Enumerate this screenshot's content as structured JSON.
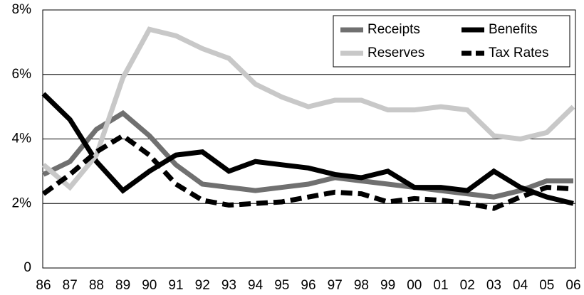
{
  "chart_data": {
    "type": "line",
    "categories": [
      "86",
      "87",
      "88",
      "89",
      "90",
      "91",
      "92",
      "93",
      "94",
      "95",
      "96",
      "97",
      "98",
      "99",
      "00",
      "01",
      "02",
      "03",
      "04",
      "05",
      "06"
    ],
    "series": [
      {
        "name": "Receipts",
        "color": "#707070",
        "line_style": "solid",
        "values": [
          2.9,
          3.3,
          4.3,
          4.8,
          4.1,
          3.2,
          2.6,
          2.5,
          2.4,
          2.5,
          2.6,
          2.8,
          2.7,
          2.6,
          2.5,
          2.4,
          2.3,
          2.2,
          2.4,
          2.7,
          2.7
        ]
      },
      {
        "name": "Benefits",
        "color": "#000000",
        "line_style": "solid",
        "values": [
          5.4,
          4.6,
          3.3,
          2.4,
          3.0,
          3.5,
          3.6,
          3.0,
          3.3,
          3.2,
          3.1,
          2.9,
          2.8,
          3.0,
          2.5,
          2.5,
          2.4,
          3.0,
          2.5,
          2.2,
          2.0
        ]
      },
      {
        "name": "Reserves",
        "color": "#c8c8c8",
        "line_style": "solid",
        "values": [
          3.2,
          2.5,
          3.5,
          5.9,
          7.4,
          7.2,
          6.8,
          6.5,
          5.7,
          5.3,
          5.0,
          5.2,
          5.2,
          4.9,
          4.9,
          5.0,
          4.9,
          4.1,
          4.0,
          4.2,
          5.0
        ]
      },
      {
        "name": "Tax Rates",
        "color": "#000000",
        "line_style": "dashed",
        "values": [
          2.3,
          2.9,
          3.6,
          4.1,
          3.5,
          2.6,
          2.1,
          1.95,
          2.0,
          2.05,
          2.2,
          2.35,
          2.3,
          2.05,
          2.15,
          2.1,
          2.0,
          1.85,
          2.2,
          2.5,
          2.45
        ]
      }
    ],
    "ylim": [
      0,
      8
    ],
    "yticks": [
      0,
      {
        "value": 2,
        "label": "2%"
      },
      {
        "value": 4,
        "label": "4%"
      },
      {
        "value": 6,
        "label": "6%"
      },
      {
        "value": 8,
        "label": "8%"
      }
    ],
    "grid": true,
    "legend": "upper-right"
  }
}
